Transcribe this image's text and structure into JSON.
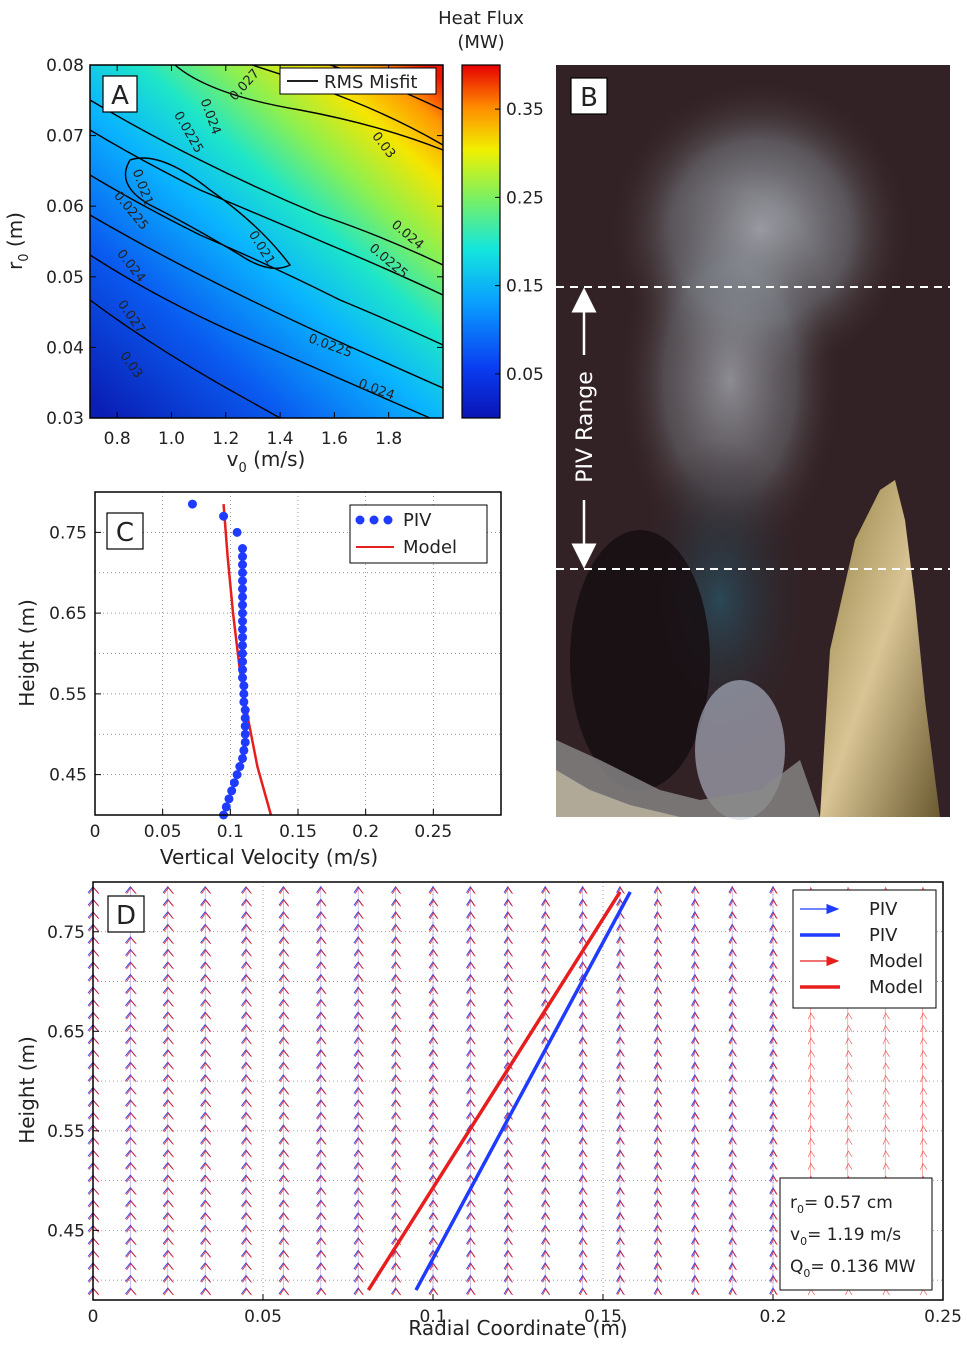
{
  "panel_a": {
    "letter": "A",
    "legend": "RMS Misfit",
    "xlabel_main": "v",
    "xlabel_sub": "0",
    "xlabel_unit": " (m/s)",
    "ylabel_main": "r",
    "ylabel_sub": "0",
    "ylabel_unit": " (m)",
    "colorbar": {
      "title_line1": "Heat Flux",
      "title_line2": "(MW)",
      "ticks": [
        "0.35",
        "0.25",
        "0.15",
        "0.05"
      ]
    }
  },
  "panel_b": {
    "letter": "B",
    "range_label": "PIV Range"
  },
  "panel_c": {
    "letter": "C",
    "xlabel": "Vertical Velocity (m/s)",
    "ylabel": "Height (m)",
    "legend_piv": "PIV",
    "legend_model": "Model"
  },
  "panel_d": {
    "letter": "D",
    "xlabel": "Radial Coordinate (m)",
    "ylabel": "Height (m)",
    "legend": [
      "PIV",
      "PIV",
      "Model",
      "Model"
    ],
    "param_r_main": "r",
    "param_r_sub": "0",
    "param_r_val": "= 0.57 cm",
    "param_v_main": "v",
    "param_v_sub": "0",
    "param_v_val": "= 1.19 m/s",
    "param_q_main": "Q",
    "param_q_sub": "0",
    "param_q_val": "= 0.136 MW"
  },
  "chart_data": [
    {
      "type": "heatmap",
      "panel": "A",
      "x_range": [
        0.7,
        2.0
      ],
      "y_range": [
        0.03,
        0.08
      ],
      "x_ticks": [
        0.8,
        1.0,
        1.2,
        1.4,
        1.6,
        1.8
      ],
      "y_ticks": [
        0.03,
        0.04,
        0.05,
        0.06,
        0.07,
        0.08
      ],
      "colorbar_range": [
        0.0,
        0.4
      ],
      "colorbar_ticks": [
        0.05,
        0.15,
        0.25,
        0.35
      ],
      "colormap": "jet",
      "contour_labels": [
        {
          "text": "0.027",
          "v": 1.28,
          "r": 0.0768,
          "rot": -48
        },
        {
          "text": "0.024",
          "v": 1.13,
          "r": 0.0725,
          "rot": 70
        },
        {
          "text": "0.0225",
          "v": 1.05,
          "r": 0.0702,
          "rot": 60
        },
        {
          "text": "0.021",
          "v": 0.88,
          "r": 0.0625,
          "rot": 70
        },
        {
          "text": "0.021",
          "v": 1.32,
          "r": 0.0538,
          "rot": 58
        },
        {
          "text": "0.03",
          "v": 1.77,
          "r": 0.0683,
          "rot": 52
        },
        {
          "text": "0.024",
          "v": 1.86,
          "r": 0.0555,
          "rot": 40
        },
        {
          "text": "0.0225",
          "v": 1.79,
          "r": 0.0518,
          "rot": 40
        },
        {
          "text": "0.0225",
          "v": 0.84,
          "r": 0.059,
          "rot": 50
        },
        {
          "text": "0.024",
          "v": 0.84,
          "r": 0.0512,
          "rot": 52
        },
        {
          "text": "0.027",
          "v": 0.84,
          "r": 0.044,
          "rot": 55
        },
        {
          "text": "0.03",
          "v": 0.84,
          "r": 0.0372,
          "rot": 55
        },
        {
          "text": "0.0225",
          "v": 1.58,
          "r": 0.0397,
          "rot": 20
        },
        {
          "text": "0.024",
          "v": 1.75,
          "r": 0.0335,
          "rot": 20
        }
      ]
    },
    {
      "type": "scatter",
      "panel": "C",
      "xlim": [
        0,
        0.3
      ],
      "ylim": [
        0.4,
        0.8
      ],
      "x_ticks": [
        0,
        0.05,
        0.1,
        0.15,
        0.2,
        0.25
      ],
      "y_ticks": [
        0.45,
        0.55,
        0.65,
        0.75
      ],
      "grid": true,
      "legend_position": "top-right",
      "series": [
        {
          "name": "PIV",
          "x": [
            0.095,
            0.097,
            0.099,
            0.101,
            0.103,
            0.105,
            0.107,
            0.109,
            0.11,
            0.111,
            0.111,
            0.111,
            0.111,
            0.111,
            0.11,
            0.11,
            0.11,
            0.109,
            0.109,
            0.109,
            0.109,
            0.109,
            0.109,
            0.109,
            0.109,
            0.109,
            0.109,
            0.109,
            0.109,
            0.109,
            0.109,
            0.109,
            0.109,
            0.109,
            0.105,
            0.095,
            0.072
          ],
          "y": [
            0.4,
            0.41,
            0.42,
            0.43,
            0.44,
            0.45,
            0.46,
            0.47,
            0.48,
            0.49,
            0.5,
            0.51,
            0.52,
            0.53,
            0.54,
            0.55,
            0.56,
            0.57,
            0.58,
            0.59,
            0.6,
            0.61,
            0.62,
            0.63,
            0.64,
            0.65,
            0.66,
            0.67,
            0.68,
            0.69,
            0.7,
            0.71,
            0.72,
            0.73,
            0.75,
            0.77,
            0.785
          ]
        },
        {
          "name": "Model",
          "type": "line",
          "x": [
            0.13,
            0.12,
            0.113,
            0.107,
            0.102,
            0.098,
            0.095
          ],
          "y": [
            0.4,
            0.46,
            0.52,
            0.58,
            0.65,
            0.72,
            0.785
          ]
        }
      ]
    },
    {
      "type": "line",
      "panel": "D",
      "xlim": [
        0,
        0.25
      ],
      "ylim": [
        0.38,
        0.8
      ],
      "x_ticks": [
        0,
        0.05,
        0.1,
        0.15,
        0.2,
        0.25
      ],
      "y_ticks": [
        0.45,
        0.55,
        0.65,
        0.75
      ],
      "grid": true,
      "legend_position": "top-right",
      "arrow_columns_x": [
        0.0,
        0.011,
        0.022,
        0.033,
        0.045,
        0.056,
        0.067,
        0.078,
        0.089,
        0.1,
        0.111,
        0.122,
        0.133,
        0.144,
        0.155,
        0.166,
        0.177,
        0.188,
        0.2,
        0.211,
        0.222,
        0.233,
        0.244
      ],
      "piv_arrow_extent": 0.2,
      "series": [
        {
          "name": "PIV",
          "x": [
            0.095,
            0.158
          ],
          "y": [
            0.39,
            0.79
          ]
        },
        {
          "name": "Model",
          "x": [
            0.081,
            0.155
          ],
          "y": [
            0.39,
            0.79
          ]
        }
      ]
    }
  ]
}
